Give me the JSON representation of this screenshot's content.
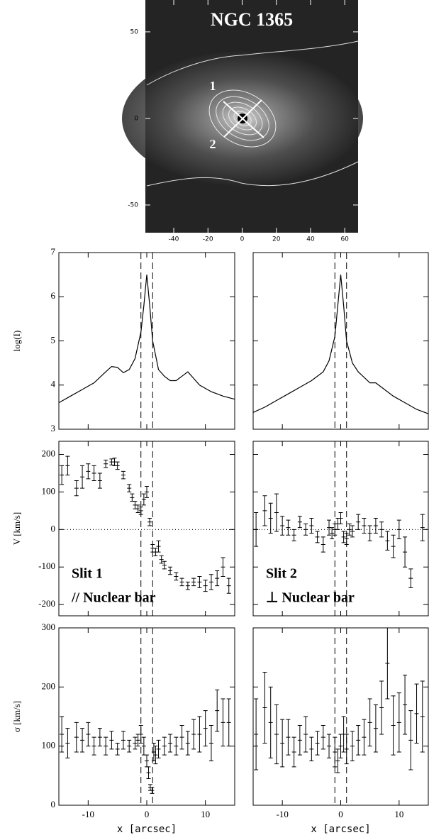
{
  "chart_data": [
    {
      "type": "image",
      "title": "NGC 1365",
      "xlim": [
        -56.6,
        67.8
      ],
      "ylim": [
        -66,
        68.4
      ],
      "xticks": [
        -40,
        -20,
        0,
        20,
        40,
        60
      ],
      "yticks": [
        -50,
        0,
        50
      ],
      "annotations": [
        "1",
        "2"
      ]
    },
    {
      "type": "line",
      "ylabel": "log(I)",
      "xlim": [
        -15,
        15
      ],
      "ylim": [
        3,
        7
      ],
      "xticks": [
        -10,
        0,
        10
      ],
      "yticks": [
        3,
        4,
        5,
        6,
        7
      ],
      "show_xtick_labels": false,
      "show_ytick_labels": true,
      "vlines": [
        -1,
        1
      ],
      "color": "#000000",
      "x": [
        -15,
        -13,
        -11,
        -9,
        -7,
        -6,
        -5,
        -4,
        -3,
        -2,
        -1,
        -0.5,
        0,
        0.5,
        1,
        2,
        3,
        4,
        5,
        6,
        7,
        8,
        9,
        11,
        13,
        15
      ],
      "values": [
        3.6,
        3.75,
        3.9,
        4.05,
        4.3,
        4.42,
        4.4,
        4.28,
        4.35,
        4.6,
        5.2,
        5.8,
        6.5,
        5.8,
        5.0,
        4.35,
        4.2,
        4.1,
        4.1,
        4.2,
        4.3,
        4.15,
        4.0,
        3.85,
        3.75,
        3.68
      ]
    },
    {
      "type": "line",
      "xlim": [
        -15,
        15
      ],
      "ylim": [
        3,
        7
      ],
      "xticks": [
        -10,
        0,
        10
      ],
      "yticks": [
        3,
        4,
        5,
        6,
        7
      ],
      "show_xtick_labels": false,
      "show_ytick_labels": false,
      "vlines": [
        -1,
        1
      ],
      "color": "#000000",
      "x": [
        -15,
        -13,
        -11,
        -9,
        -7,
        -5,
        -3,
        -2,
        -1,
        -0.5,
        0,
        0.5,
        1,
        2,
        3,
        5,
        6,
        7,
        9,
        11,
        13,
        15
      ],
      "values": [
        3.38,
        3.5,
        3.65,
        3.8,
        3.95,
        4.1,
        4.3,
        4.55,
        5.1,
        5.8,
        6.5,
        5.8,
        5.0,
        4.5,
        4.3,
        4.05,
        4.05,
        3.95,
        3.75,
        3.6,
        3.45,
        3.35
      ]
    },
    {
      "type": "errorbar",
      "ylabel": "V [km/s]",
      "xlim": [
        -15,
        15
      ],
      "ylim": [
        -230,
        235
      ],
      "xticks": [
        -10,
        0,
        10
      ],
      "yticks": [
        -200,
        -100,
        0,
        100,
        200
      ],
      "show_xtick_labels": false,
      "show_ytick_labels": true,
      "vlines": [
        -1,
        1
      ],
      "hlines": [
        0
      ],
      "annotations": [
        "Slit 1",
        "// Nuclear bar"
      ],
      "x": [
        -14.5,
        -13.5,
        -12,
        -11,
        -10,
        -9,
        -8,
        -7,
        -6,
        -5.5,
        -5,
        -4,
        -3,
        -2.5,
        -2,
        -1.5,
        -1,
        -0.5,
        0,
        0.5,
        1,
        1.5,
        2,
        2.5,
        3,
        4,
        5,
        6,
        7,
        8,
        9,
        10,
        11,
        12,
        13,
        14
      ],
      "values": [
        145,
        170,
        110,
        140,
        155,
        150,
        130,
        175,
        180,
        180,
        170,
        145,
        110,
        85,
        65,
        55,
        50,
        80,
        100,
        20,
        -50,
        -60,
        -45,
        -80,
        -95,
        -110,
        -125,
        -140,
        -150,
        -140,
        -140,
        -150,
        -140,
        -130,
        -100,
        -150
      ],
      "errors": [
        25,
        25,
        20,
        30,
        20,
        20,
        20,
        10,
        8,
        10,
        10,
        10,
        10,
        10,
        10,
        10,
        10,
        15,
        15,
        10,
        10,
        10,
        15,
        10,
        10,
        10,
        10,
        10,
        10,
        10,
        15,
        15,
        20,
        20,
        25,
        20
      ]
    },
    {
      "type": "errorbar",
      "xlim": [
        -15,
        15
      ],
      "ylim": [
        -230,
        235
      ],
      "xticks": [
        -10,
        0,
        10
      ],
      "yticks": [
        -200,
        -100,
        0,
        100,
        200
      ],
      "show_xtick_labels": false,
      "show_ytick_labels": false,
      "vlines": [
        -1,
        1
      ],
      "hlines": [
        0
      ],
      "annotations": [
        "Slit 2",
        "⊥ Nuclear bar"
      ],
      "x": [
        -14.5,
        -13,
        -12,
        -11,
        -10,
        -9,
        -8,
        -7,
        -6,
        -5,
        -4,
        -3,
        -2,
        -1.5,
        -1,
        -0.5,
        0,
        0.5,
        1,
        1.5,
        2,
        3,
        4,
        5,
        6,
        7,
        8,
        9,
        10,
        11,
        12,
        14
      ],
      "values": [
        0,
        50,
        30,
        45,
        10,
        5,
        -15,
        20,
        0,
        10,
        -20,
        -40,
        5,
        -10,
        0,
        15,
        30,
        -20,
        -25,
        0,
        -5,
        20,
        10,
        -10,
        10,
        0,
        -30,
        -45,
        0,
        -60,
        -130,
        5
      ],
      "errors": [
        45,
        40,
        40,
        50,
        25,
        20,
        15,
        15,
        15,
        20,
        15,
        20,
        20,
        15,
        15,
        15,
        15,
        15,
        15,
        15,
        15,
        20,
        20,
        20,
        20,
        20,
        25,
        30,
        25,
        40,
        25,
        35
      ]
    },
    {
      "type": "errorbar",
      "ylabel": "σ [km/s]",
      "xlabel": "x [arcsec]",
      "xlim": [
        -15,
        15
      ],
      "ylim": [
        0,
        300
      ],
      "xticks": [
        -10,
        0,
        10
      ],
      "yticks": [
        0,
        100,
        200,
        300
      ],
      "show_xtick_labels": true,
      "show_ytick_labels": true,
      "vlines": [
        -1,
        1
      ],
      "x": [
        -14.5,
        -13.5,
        -12,
        -11,
        -10,
        -9,
        -8,
        -7,
        -6,
        -5,
        -4,
        -3,
        -2,
        -1.5,
        -1,
        -0.5,
        0,
        0.3,
        0.6,
        0.9,
        1.2,
        1.5,
        2,
        3,
        4,
        5,
        6,
        7,
        8,
        9,
        10,
        11,
        12,
        13,
        14
      ],
      "values": [
        120,
        105,
        115,
        110,
        120,
        100,
        115,
        100,
        110,
        95,
        110,
        100,
        105,
        110,
        120,
        100,
        75,
        55,
        30,
        25,
        90,
        85,
        95,
        100,
        105,
        100,
        115,
        105,
        120,
        120,
        130,
        105,
        160,
        140,
        140
      ],
      "errors": [
        30,
        25,
        25,
        20,
        20,
        15,
        15,
        15,
        15,
        10,
        15,
        10,
        10,
        10,
        15,
        15,
        10,
        10,
        5,
        5,
        15,
        15,
        15,
        15,
        15,
        15,
        20,
        20,
        25,
        30,
        30,
        30,
        35,
        40,
        40
      ]
    },
    {
      "type": "errorbar",
      "xlabel": "x [arcsec]",
      "xlim": [
        -15,
        15
      ],
      "ylim": [
        0,
        300
      ],
      "xticks": [
        -10,
        0,
        10
      ],
      "yticks": [
        0,
        100,
        200,
        300
      ],
      "show_xtick_labels": true,
      "show_ytick_labels": false,
      "vlines": [
        -1,
        1
      ],
      "x": [
        -14.5,
        -13,
        -12,
        -11,
        -10,
        -9,
        -8,
        -7,
        -6,
        -5,
        -4,
        -3,
        -2,
        -1,
        -0.5,
        0,
        0.5,
        1,
        2,
        3,
        4,
        5,
        6,
        7,
        8,
        9,
        10,
        11,
        12,
        13,
        14
      ],
      "values": [
        120,
        165,
        140,
        120,
        105,
        115,
        90,
        110,
        120,
        95,
        105,
        115,
        100,
        90,
        75,
        100,
        120,
        95,
        100,
        110,
        115,
        140,
        130,
        165,
        240,
        135,
        140,
        170,
        110,
        155,
        150
      ],
      "errors": [
        60,
        60,
        60,
        50,
        40,
        30,
        25,
        25,
        30,
        20,
        20,
        20,
        20,
        25,
        20,
        20,
        30,
        25,
        25,
        25,
        30,
        40,
        40,
        45,
        60,
        50,
        50,
        50,
        50,
        50,
        60
      ]
    }
  ]
}
